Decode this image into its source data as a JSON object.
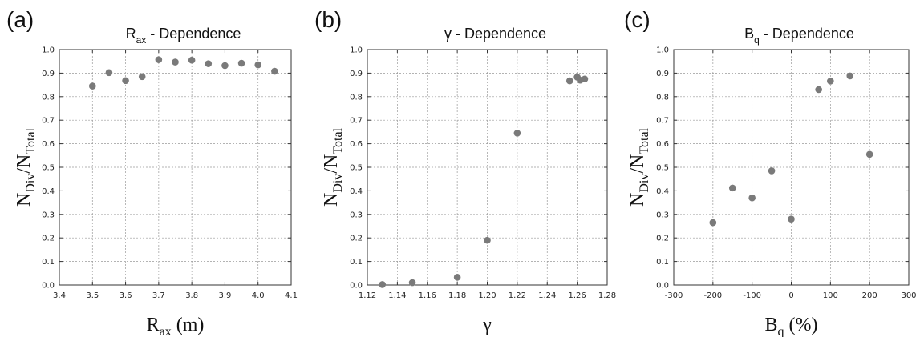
{
  "chart_data": [
    {
      "type": "scatter",
      "panel_label": "(a)",
      "title": {
        "main": "R",
        "sub": "ax",
        "rest": " - Dependence"
      },
      "xlabel": {
        "main": "R",
        "sub": "ax",
        "rest": " (m)"
      },
      "ylabel": {
        "main": "N",
        "sub1": "Div",
        "mid": "/N",
        "sub2": "Total"
      },
      "xlim": [
        3.4,
        4.1
      ],
      "ylim": [
        0.0,
        1.0
      ],
      "xticks": [
        "3.4",
        "3.5",
        "3.6",
        "3.7",
        "3.8",
        "3.9",
        "4.0",
        "4.1"
      ],
      "yticks": [
        "0.0",
        "0.1",
        "0.2",
        "0.3",
        "0.4",
        "0.5",
        "0.6",
        "0.7",
        "0.8",
        "0.9",
        "1.0"
      ],
      "grid": true,
      "points": [
        {
          "x": 3.5,
          "y": 0.845
        },
        {
          "x": 3.55,
          "y": 0.902
        },
        {
          "x": 3.6,
          "y": 0.868
        },
        {
          "x": 3.65,
          "y": 0.885
        },
        {
          "x": 3.7,
          "y": 0.957
        },
        {
          "x": 3.75,
          "y": 0.947
        },
        {
          "x": 3.8,
          "y": 0.955
        },
        {
          "x": 3.85,
          "y": 0.94
        },
        {
          "x": 3.9,
          "y": 0.932
        },
        {
          "x": 3.95,
          "y": 0.942
        },
        {
          "x": 4.0,
          "y": 0.935
        },
        {
          "x": 4.05,
          "y": 0.908
        }
      ]
    },
    {
      "type": "scatter",
      "panel_label": "(b)",
      "title": {
        "main": "γ - Dependence",
        "sub": "",
        "rest": ""
      },
      "xlabel": {
        "main": "γ",
        "sub": "",
        "rest": ""
      },
      "ylabel": {
        "main": "N",
        "sub1": "Div",
        "mid": "/N",
        "sub2": "Total"
      },
      "xlim": [
        1.12,
        1.28
      ],
      "ylim": [
        0.0,
        1.0
      ],
      "xticks": [
        "1.12",
        "1.14",
        "1.16",
        "1.18",
        "1.20",
        "1.22",
        "1.24",
        "1.26",
        "1.28"
      ],
      "yticks": [
        "0.0",
        "0.1",
        "0.2",
        "0.3",
        "0.4",
        "0.5",
        "0.6",
        "0.7",
        "0.8",
        "0.9",
        "1.0"
      ],
      "grid": true,
      "points": [
        {
          "x": 1.13,
          "y": 0.002
        },
        {
          "x": 1.15,
          "y": 0.01
        },
        {
          "x": 1.18,
          "y": 0.033
        },
        {
          "x": 1.2,
          "y": 0.19
        },
        {
          "x": 1.22,
          "y": 0.645
        },
        {
          "x": 1.255,
          "y": 0.867
        },
        {
          "x": 1.26,
          "y": 0.883
        },
        {
          "x": 1.262,
          "y": 0.87
        },
        {
          "x": 1.265,
          "y": 0.875
        }
      ]
    },
    {
      "type": "scatter",
      "panel_label": "(c)",
      "title": {
        "main": "B",
        "sub": "q",
        "rest": " - Dependence"
      },
      "xlabel": {
        "main": "B",
        "sub": "q",
        "rest": " (%)"
      },
      "ylabel": {
        "main": "N",
        "sub1": "Div",
        "mid": "/N",
        "sub2": "Total"
      },
      "xlim": [
        -300,
        300
      ],
      "ylim": [
        0.0,
        1.0
      ],
      "xticks": [
        "-300",
        "-200",
        "-100",
        "0",
        "100",
        "200",
        "300"
      ],
      "yticks": [
        "0.0",
        "0.1",
        "0.2",
        "0.3",
        "0.4",
        "0.5",
        "0.6",
        "0.7",
        "0.8",
        "0.9",
        "1.0"
      ],
      "grid": true,
      "points": [
        {
          "x": -200,
          "y": 0.265
        },
        {
          "x": -150,
          "y": 0.412
        },
        {
          "x": -100,
          "y": 0.37
        },
        {
          "x": -50,
          "y": 0.485
        },
        {
          "x": 0,
          "y": 0.28
        },
        {
          "x": 70,
          "y": 0.83
        },
        {
          "x": 100,
          "y": 0.866
        },
        {
          "x": 150,
          "y": 0.888
        },
        {
          "x": 200,
          "y": 0.555
        }
      ]
    }
  ]
}
